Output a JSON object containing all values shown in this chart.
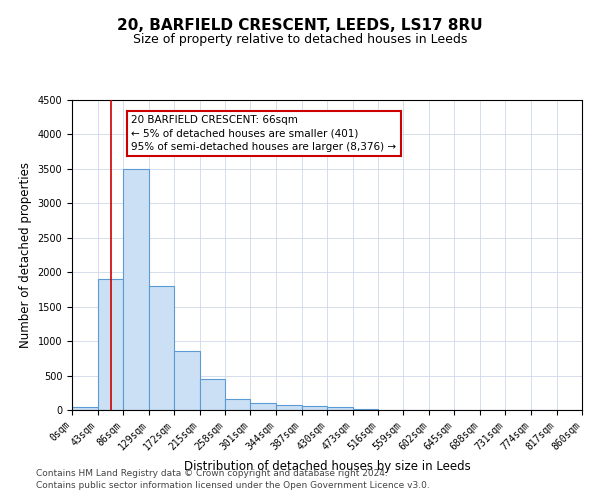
{
  "title1": "20, BARFIELD CRESCENT, LEEDS, LS17 8RU",
  "title2": "Size of property relative to detached houses in Leeds",
  "xlabel": "Distribution of detached houses by size in Leeds",
  "ylabel": "Number of detached properties",
  "bin_edges": [
    0,
    43,
    86,
    129,
    172,
    215,
    258,
    301,
    344,
    387,
    430,
    473,
    516,
    559,
    602,
    645,
    688,
    731,
    774,
    817,
    860
  ],
  "bar_heights": [
    50,
    1900,
    3500,
    1800,
    850,
    450,
    165,
    100,
    75,
    60,
    40,
    15,
    5,
    3,
    2,
    1,
    1,
    0,
    0,
    0
  ],
  "bar_color": "#cce0f5",
  "bar_edge_color": "#5b9bd5",
  "bar_edge_width": 0.8,
  "red_line_x": 66,
  "annotation_line1": "20 BARFIELD CRESCENT: 66sqm",
  "annotation_line2": "← 5% of detached houses are smaller (401)",
  "annotation_line3": "95% of semi-detached houses are larger (8,376) →",
  "annotation_box_color": "#ffffff",
  "annotation_box_edge": "#cc0000",
  "ylim": [
    0,
    4500
  ],
  "yticks": [
    0,
    500,
    1000,
    1500,
    2000,
    2500,
    3000,
    3500,
    4000,
    4500
  ],
  "tick_labels": [
    "0sqm",
    "43sqm",
    "86sqm",
    "129sqm",
    "172sqm",
    "215sqm",
    "258sqm",
    "301sqm",
    "344sqm",
    "387sqm",
    "430sqm",
    "473sqm",
    "516sqm",
    "559sqm",
    "602sqm",
    "645sqm",
    "688sqm",
    "731sqm",
    "774sqm",
    "817sqm",
    "860sqm"
  ],
  "footer1": "Contains HM Land Registry data © Crown copyright and database right 2024.",
  "footer2": "Contains public sector information licensed under the Open Government Licence v3.0.",
  "bg_color": "#ffffff",
  "grid_color": "#cdd8e8",
  "title1_fontsize": 11,
  "title2_fontsize": 9,
  "axis_label_fontsize": 8.5,
  "tick_fontsize": 7,
  "footer_fontsize": 6.5,
  "annotation_fontsize": 7.5
}
